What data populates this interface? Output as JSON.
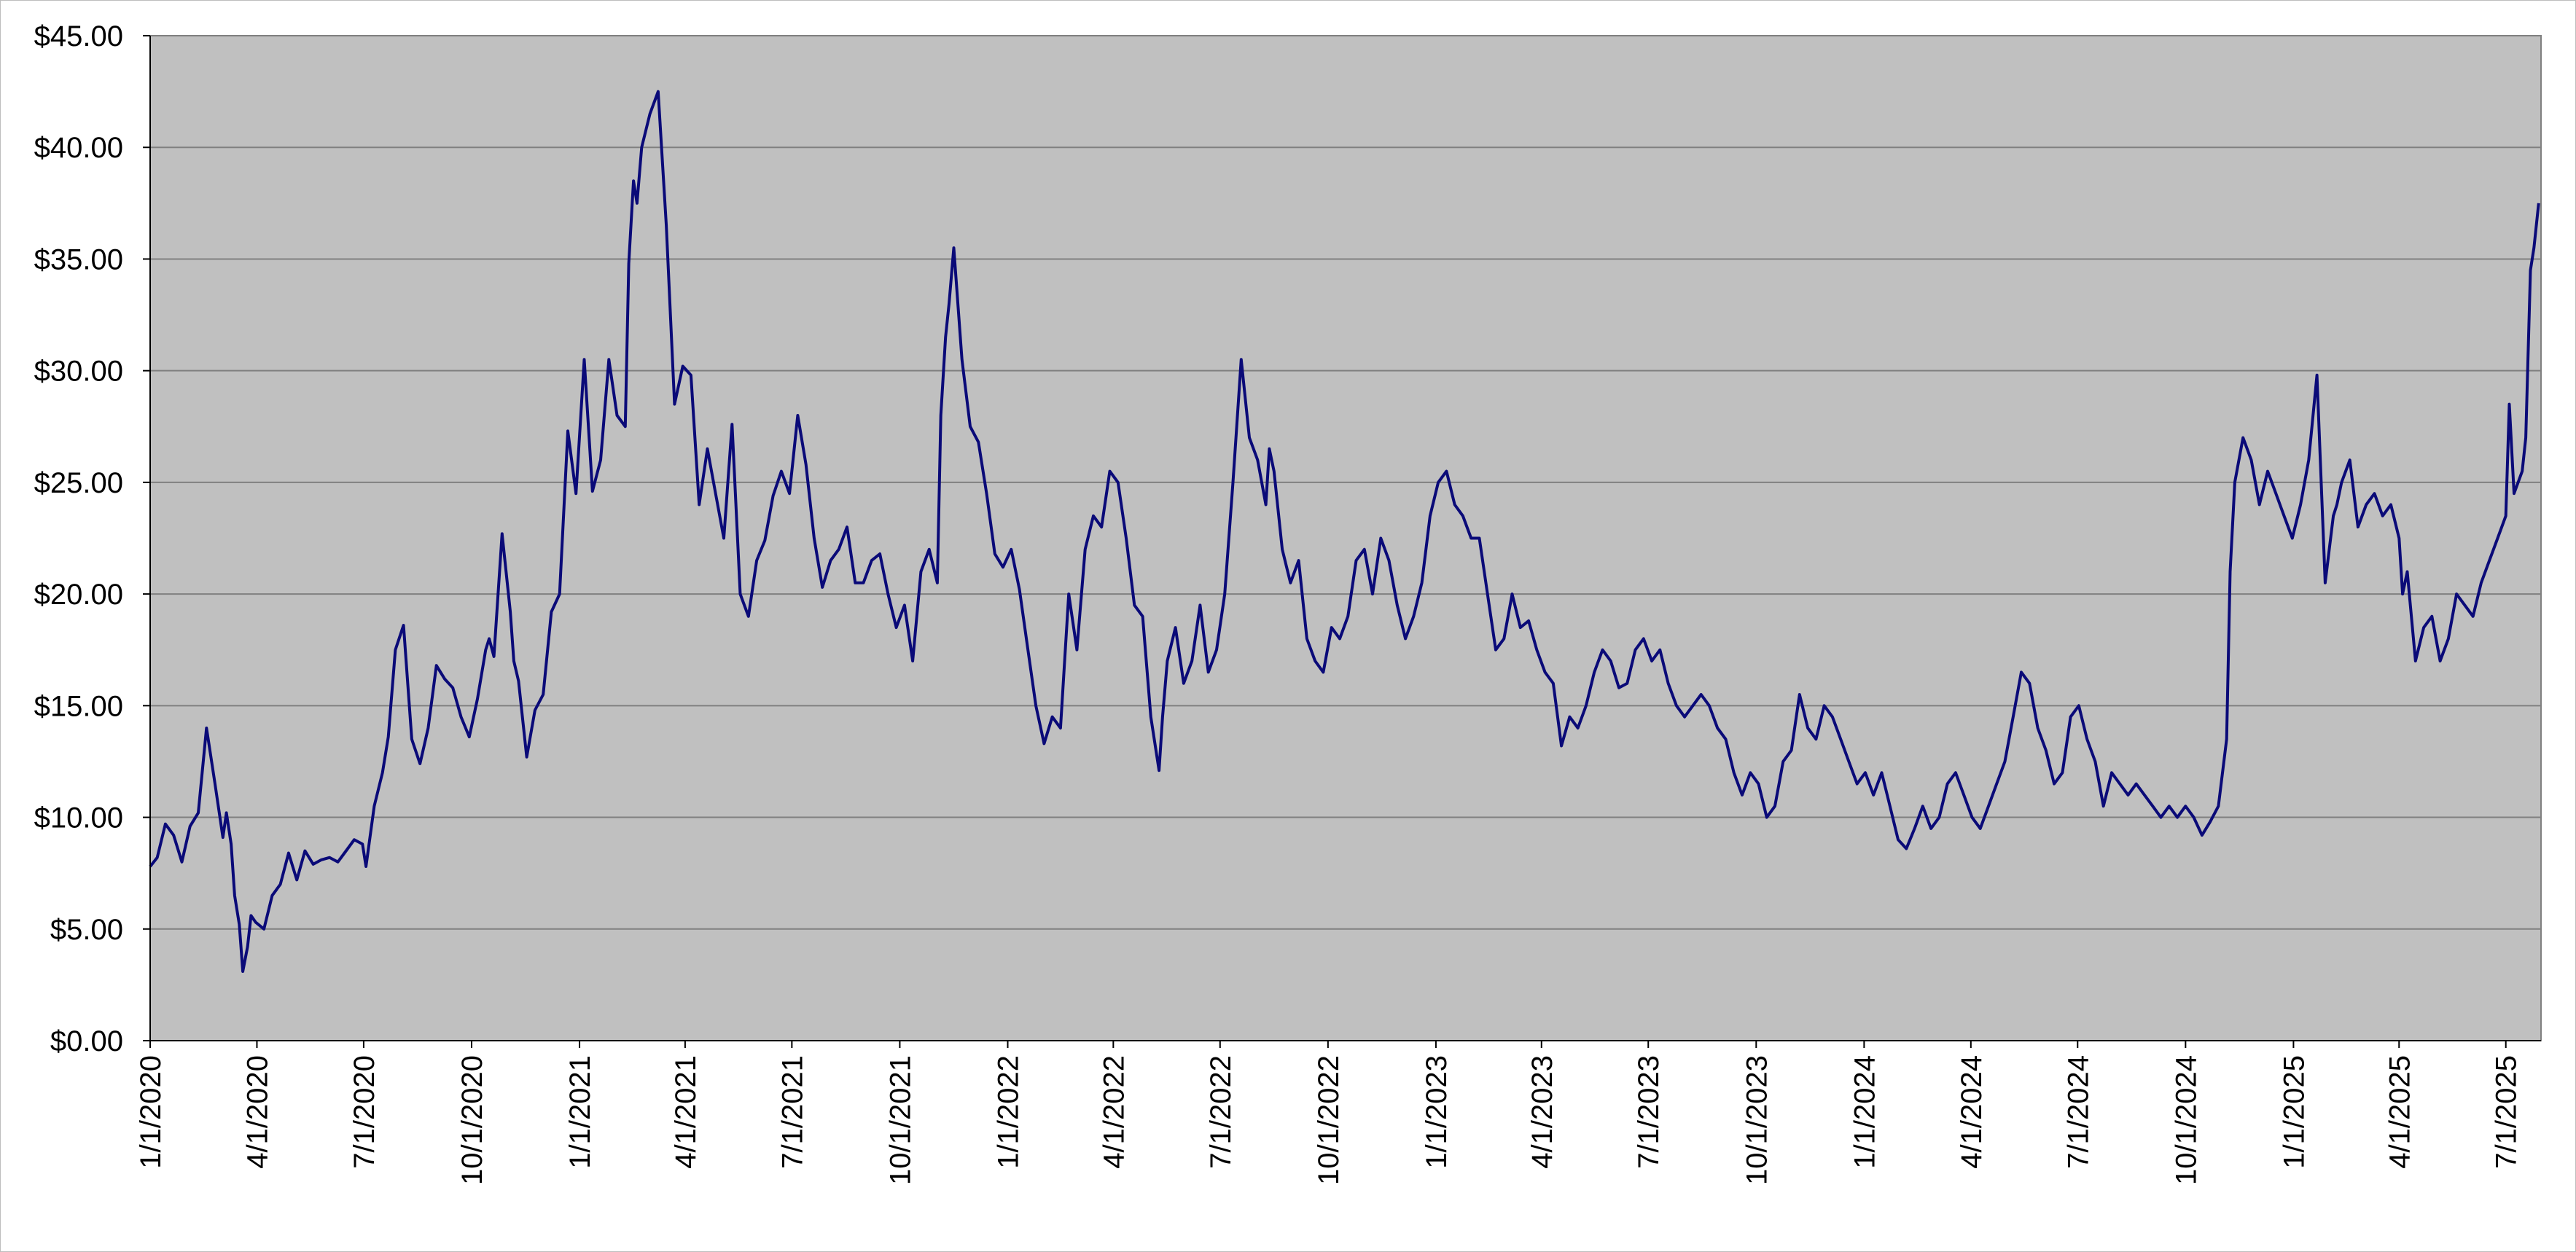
{
  "chart_data": {
    "type": "line",
    "title": "",
    "xlabel": "",
    "ylabel": "",
    "ylim": [
      0,
      45
    ],
    "xlim": [
      "2020-01-01",
      "2025-07-31"
    ],
    "grid": true,
    "legend": "none",
    "colors": {
      "line": "#0a0a78",
      "plot_bg": "#c0c0c0",
      "grid": "#808080",
      "axis": "#000000"
    },
    "ytick_labels": [
      "$0.00",
      "$5.00",
      "$10.00",
      "$15.00",
      "$20.00",
      "$25.00",
      "$30.00",
      "$35.00",
      "$40.00",
      "$45.00"
    ],
    "ytick_values": [
      0,
      5,
      10,
      15,
      20,
      25,
      30,
      35,
      40,
      45
    ],
    "xtick_labels": [
      "1/1/2020",
      "4/1/2020",
      "7/1/2020",
      "10/1/2020",
      "1/1/2021",
      "4/1/2021",
      "7/1/2021",
      "10/1/2021",
      "1/1/2022",
      "4/1/2022",
      "7/1/2022",
      "10/1/2022",
      "1/1/2023",
      "4/1/2023",
      "7/1/2023",
      "10/1/2023",
      "1/1/2024",
      "4/1/2024",
      "7/1/2024",
      "10/1/2024",
      "1/1/2025",
      "4/1/2025",
      "7/1/2025"
    ],
    "series": [
      {
        "x": [
          "2020-01-01",
          "2020-01-07",
          "2020-01-14",
          "2020-01-21",
          "2020-01-28",
          "2020-02-04",
          "2020-02-11",
          "2020-02-18",
          "2020-02-25",
          "2020-03-03",
          "2020-03-06",
          "2020-03-10",
          "2020-03-13",
          "2020-03-17",
          "2020-03-20",
          "2020-03-24",
          "2020-03-27",
          "2020-03-31",
          "2020-04-07",
          "2020-04-14",
          "2020-04-21",
          "2020-04-28",
          "2020-05-05",
          "2020-05-12",
          "2020-05-19",
          "2020-05-26",
          "2020-06-02",
          "2020-06-09",
          "2020-06-16",
          "2020-06-23",
          "2020-06-30",
          "2020-07-03",
          "2020-07-10",
          "2020-07-17",
          "2020-07-22",
          "2020-07-28",
          "2020-08-04",
          "2020-08-11",
          "2020-08-18",
          "2020-08-25",
          "2020-09-01",
          "2020-09-08",
          "2020-09-15",
          "2020-09-22",
          "2020-09-29",
          "2020-10-06",
          "2020-10-13",
          "2020-10-16",
          "2020-10-20",
          "2020-10-27",
          "2020-11-03",
          "2020-11-06",
          "2020-11-10",
          "2020-11-17",
          "2020-11-24",
          "2020-12-01",
          "2020-12-08",
          "2020-12-15",
          "2020-12-22",
          "2020-12-29",
          "2021-01-05",
          "2021-01-12",
          "2021-01-19",
          "2021-01-26",
          "2021-02-02",
          "2021-02-09",
          "2021-02-12",
          "2021-02-16",
          "2021-02-19",
          "2021-02-23",
          "2021-03-02",
          "2021-03-09",
          "2021-03-16",
          "2021-03-23",
          "2021-03-30",
          "2021-04-06",
          "2021-04-13",
          "2021-04-20",
          "2021-04-27",
          "2021-05-04",
          "2021-05-11",
          "2021-05-18",
          "2021-05-25",
          "2021-06-01",
          "2021-06-08",
          "2021-06-15",
          "2021-06-22",
          "2021-06-29",
          "2021-07-06",
          "2021-07-13",
          "2021-07-20",
          "2021-07-27",
          "2021-08-03",
          "2021-08-10",
          "2021-08-17",
          "2021-08-24",
          "2021-08-31",
          "2021-09-07",
          "2021-09-14",
          "2021-09-21",
          "2021-09-28",
          "2021-10-05",
          "2021-10-12",
          "2021-10-19",
          "2021-10-26",
          "2021-11-02",
          "2021-11-05",
          "2021-11-09",
          "2021-11-12",
          "2021-11-16",
          "2021-11-23",
          "2021-11-30",
          "2021-12-07",
          "2021-12-14",
          "2021-12-21",
          "2021-12-28",
          "2022-01-04",
          "2022-01-11",
          "2022-01-18",
          "2022-01-25",
          "2022-02-01",
          "2022-02-08",
          "2022-02-15",
          "2022-02-22",
          "2022-03-01",
          "2022-03-08",
          "2022-03-15",
          "2022-03-22",
          "2022-03-29",
          "2022-04-05",
          "2022-04-12",
          "2022-04-19",
          "2022-04-26",
          "2022-05-03",
          "2022-05-10",
          "2022-05-13",
          "2022-05-17",
          "2022-05-24",
          "2022-05-31",
          "2022-06-07",
          "2022-06-14",
          "2022-06-21",
          "2022-06-28",
          "2022-07-05",
          "2022-07-12",
          "2022-07-19",
          "2022-07-26",
          "2022-08-02",
          "2022-08-09",
          "2022-08-12",
          "2022-08-16",
          "2022-08-23",
          "2022-08-30",
          "2022-09-06",
          "2022-09-13",
          "2022-09-20",
          "2022-09-27",
          "2022-10-04",
          "2022-10-11",
          "2022-10-18",
          "2022-10-25",
          "2022-11-01",
          "2022-11-08",
          "2022-11-15",
          "2022-11-22",
          "2022-11-29",
          "2022-12-06",
          "2022-12-13",
          "2022-12-20",
          "2022-12-27",
          "2023-01-03",
          "2023-01-10",
          "2023-01-17",
          "2023-01-24",
          "2023-01-31",
          "2023-02-07",
          "2023-02-14",
          "2023-02-21",
          "2023-02-28",
          "2023-03-07",
          "2023-03-14",
          "2023-03-21",
          "2023-03-28",
          "2023-04-04",
          "2023-04-11",
          "2023-04-18",
          "2023-04-25",
          "2023-05-02",
          "2023-05-09",
          "2023-05-16",
          "2023-05-23",
          "2023-05-30",
          "2023-06-06",
          "2023-06-13",
          "2023-06-20",
          "2023-06-27",
          "2023-07-04",
          "2023-07-11",
          "2023-07-18",
          "2023-07-25",
          "2023-08-01",
          "2023-08-08",
          "2023-08-15",
          "2023-08-22",
          "2023-08-29",
          "2023-09-05",
          "2023-09-12",
          "2023-09-19",
          "2023-09-26",
          "2023-10-03",
          "2023-10-10",
          "2023-10-17",
          "2023-10-24",
          "2023-10-31",
          "2023-11-07",
          "2023-11-14",
          "2023-11-21",
          "2023-11-28",
          "2023-12-05",
          "2023-12-12",
          "2023-12-19",
          "2023-12-26",
          "2024-01-02",
          "2024-01-09",
          "2024-01-16",
          "2024-01-23",
          "2024-01-30",
          "2024-02-06",
          "2024-02-13",
          "2024-02-20",
          "2024-02-27",
          "2024-03-05",
          "2024-03-12",
          "2024-03-19",
          "2024-03-26",
          "2024-04-02",
          "2024-04-09",
          "2024-04-16",
          "2024-04-23",
          "2024-04-30",
          "2024-05-07",
          "2024-05-14",
          "2024-05-21",
          "2024-05-28",
          "2024-06-04",
          "2024-06-11",
          "2024-06-18",
          "2024-06-25",
          "2024-07-02",
          "2024-07-09",
          "2024-07-16",
          "2024-07-23",
          "2024-07-30",
          "2024-08-06",
          "2024-08-13",
          "2024-08-20",
          "2024-08-27",
          "2024-09-03",
          "2024-09-10",
          "2024-09-17",
          "2024-09-24",
          "2024-10-01",
          "2024-10-08",
          "2024-10-15",
          "2024-10-22",
          "2024-10-29",
          "2024-11-05",
          "2024-11-08",
          "2024-11-12",
          "2024-11-19",
          "2024-11-26",
          "2024-12-03",
          "2024-12-10",
          "2024-12-17",
          "2024-12-24",
          "2024-12-31",
          "2025-01-07",
          "2025-01-14",
          "2025-01-21",
          "2025-01-28",
          "2025-02-04",
          "2025-02-07",
          "2025-02-11",
          "2025-02-18",
          "2025-02-25",
          "2025-03-04",
          "2025-03-11",
          "2025-03-18",
          "2025-03-25",
          "2025-04-01",
          "2025-04-04",
          "2025-04-08",
          "2025-04-15",
          "2025-04-22",
          "2025-04-29",
          "2025-05-06",
          "2025-05-13",
          "2025-05-20",
          "2025-05-27",
          "2025-06-03",
          "2025-06-10",
          "2025-06-17",
          "2025-06-24",
          "2025-07-01",
          "2025-07-04",
          "2025-07-08",
          "2025-07-15",
          "2025-07-18",
          "2025-07-22",
          "2025-07-25",
          "2025-07-29"
        ],
        "y": [
          7.8,
          8.2,
          9.7,
          9.2,
          8.0,
          9.6,
          10.2,
          14.0,
          11.6,
          9.1,
          10.2,
          8.8,
          6.5,
          5.2,
          3.1,
          4.2,
          5.6,
          5.3,
          5.0,
          6.5,
          7.0,
          8.4,
          7.2,
          8.5,
          7.9,
          8.1,
          8.2,
          8.0,
          8.5,
          9.0,
          8.8,
          7.8,
          10.5,
          12.0,
          13.6,
          17.5,
          18.6,
          13.5,
          12.4,
          14.0,
          16.8,
          16.2,
          15.8,
          14.5,
          13.6,
          15.3,
          17.5,
          18.0,
          17.2,
          22.7,
          19.2,
          17.0,
          16.1,
          12.7,
          14.8,
          15.5,
          19.2,
          20.0,
          27.3,
          24.5,
          30.5,
          24.6,
          26.0,
          30.5,
          28.0,
          27.5,
          34.8,
          38.5,
          37.5,
          40.0,
          41.5,
          42.5,
          36.5,
          28.5,
          30.2,
          29.8,
          24.0,
          26.5,
          24.5,
          22.5,
          27.6,
          20.0,
          19.0,
          21.5,
          22.4,
          24.4,
          25.5,
          24.5,
          28.0,
          25.8,
          22.5,
          20.3,
          21.5,
          22.0,
          23.0,
          20.5,
          20.5,
          21.5,
          21.8,
          20.0,
          18.5,
          19.5,
          17.0,
          21.0,
          22.0,
          20.5,
          28.0,
          31.5,
          33.0,
          35.5,
          30.5,
          27.5,
          26.8,
          24.5,
          21.8,
          21.2,
          22.0,
          20.2,
          17.6,
          15.0,
          13.3,
          14.5,
          14.0,
          20.0,
          17.5,
          22.0,
          23.5,
          23.0,
          25.5,
          25.0,
          22.5,
          19.5,
          19.0,
          14.5,
          12.1,
          14.5,
          17.0,
          18.5,
          16.0,
          17.0,
          19.5,
          16.5,
          17.5,
          20.0,
          25.0,
          30.5,
          27.0,
          26.0,
          24.0,
          26.5,
          25.5,
          22.0,
          20.5,
          21.5,
          18.0,
          17.0,
          16.5,
          18.5,
          18.0,
          19.0,
          21.5,
          22.0,
          20.0,
          22.5,
          21.5,
          19.5,
          18.0,
          19.0,
          20.5,
          23.5,
          25.0,
          25.5,
          24.0,
          23.5,
          22.5,
          22.5,
          20.0,
          17.5,
          18.0,
          20.0,
          18.5,
          18.8,
          17.5,
          16.5,
          16.0,
          13.2,
          14.5,
          14.0,
          15.0,
          16.5,
          17.5,
          17.0,
          15.8,
          16.0,
          17.5,
          18.0,
          17.0,
          17.5,
          16.0,
          15.0,
          14.5,
          15.0,
          15.5,
          15.0,
          14.0,
          13.5,
          12.0,
          11.0,
          12.0,
          11.5,
          10.0,
          10.5,
          12.5,
          13.0,
          15.5,
          14.0,
          13.5,
          15.0,
          14.5,
          13.5,
          12.5,
          11.5,
          12.0,
          11.0,
          12.0,
          10.5,
          9.0,
          8.6,
          9.5,
          10.5,
          9.5,
          10.0,
          11.5,
          12.0,
          11.0,
          10.0,
          9.5,
          10.5,
          11.5,
          12.5,
          14.5,
          16.5,
          16.0,
          14.0,
          13.0,
          11.5,
          12.0,
          14.5,
          15.0,
          13.5,
          12.5,
          10.5,
          12.0,
          11.5,
          11.0,
          11.5,
          11.0,
          10.5,
          10.0,
          10.5,
          10.0,
          10.5,
          10.0,
          9.2,
          9.8,
          10.5,
          13.5,
          21.0,
          25.0,
          27.0,
          26.0,
          24.0,
          25.5,
          24.5,
          23.5,
          22.5,
          24.0,
          26.0,
          29.8,
          20.5,
          23.5,
          24.0,
          25.0,
          26.0,
          23.0,
          24.0,
          24.5,
          23.5,
          24.0,
          22.5,
          20.0,
          21.0,
          17.0,
          18.5,
          19.0,
          17.0,
          18.0,
          20.0,
          19.5,
          19.0,
          20.5,
          21.5,
          22.5,
          23.5,
          28.5,
          24.5,
          25.5,
          27.0,
          34.5,
          35.5,
          37.5
        ]
      }
    ]
  }
}
